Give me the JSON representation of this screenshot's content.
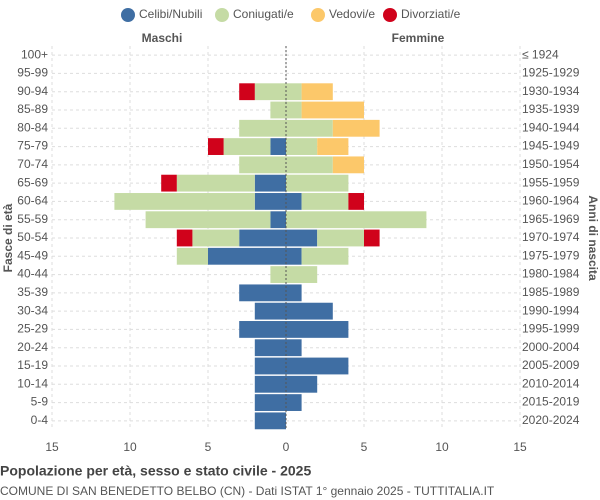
{
  "chart_data": {
    "type": "pyramid",
    "title": "Popolazione per età, sesso e stato civile - 2025",
    "subtitle": "COMUNE DI SAN BENEDETTO BELBO (CN) - Dati ISTAT 1° gennaio 2025 - TUTTITALIA.IT",
    "left_label": "Maschi",
    "right_label": "Femmine",
    "ylabel": "Fasce di età",
    "y2label": "Anni di nascita",
    "categories": [
      "100+",
      "95-99",
      "90-94",
      "85-89",
      "80-84",
      "75-79",
      "70-74",
      "65-69",
      "60-64",
      "55-59",
      "50-54",
      "45-49",
      "40-44",
      "35-39",
      "30-34",
      "25-29",
      "20-24",
      "15-19",
      "10-14",
      "5-9",
      "0-4"
    ],
    "birth_years": [
      "≤ 1924",
      "1925-1929",
      "1930-1934",
      "1935-1939",
      "1940-1944",
      "1945-1949",
      "1950-1954",
      "1955-1959",
      "1960-1964",
      "1965-1969",
      "1970-1974",
      "1975-1979",
      "1980-1984",
      "1985-1989",
      "1990-1994",
      "1995-1999",
      "2000-2004",
      "2005-2009",
      "2010-2014",
      "2015-2019",
      "2020-2024"
    ],
    "xlim": [
      -15,
      15
    ],
    "xticks": [
      {
        "value": -15,
        "label": "15"
      },
      {
        "value": -10,
        "label": "10"
      },
      {
        "value": -5,
        "label": "5"
      },
      0,
      5,
      10,
      15
    ],
    "grid": true,
    "series": [
      {
        "name": "Celibi/Nubili",
        "color": "#3f6ea3",
        "male_values": [
          0,
          0,
          0,
          0,
          0,
          1,
          0,
          2,
          2,
          1,
          3,
          5,
          0,
          3,
          2,
          3,
          2,
          2,
          2,
          2,
          2
        ],
        "female_values": [
          0,
          0,
          0,
          0,
          0,
          0,
          0,
          0,
          1,
          0,
          2,
          1,
          0,
          1,
          3,
          4,
          1,
          4,
          2,
          1,
          0
        ]
      },
      {
        "name": "Coniugati/e",
        "color": "#c5dba5",
        "male_values": [
          0,
          0,
          2,
          1,
          3,
          3,
          3,
          5,
          9,
          8,
          3,
          2,
          1,
          0,
          0,
          0,
          0,
          0,
          0,
          0,
          0
        ],
        "female_values": [
          0,
          0,
          1,
          1,
          3,
          2,
          3,
          4,
          3,
          9,
          3,
          3,
          2,
          0,
          0,
          0,
          0,
          0,
          0,
          0,
          0
        ]
      },
      {
        "name": "Vedovi/e",
        "color": "#fcc86a",
        "male_values": [
          0,
          0,
          0,
          0,
          0,
          0,
          0,
          0,
          0,
          0,
          0,
          0,
          0,
          0,
          0,
          0,
          0,
          0,
          0,
          0,
          0
        ],
        "female_values": [
          0,
          0,
          2,
          4,
          3,
          2,
          2,
          0,
          0,
          0,
          0,
          0,
          0,
          0,
          0,
          0,
          0,
          0,
          0,
          0,
          0
        ]
      },
      {
        "name": "Divorziati/e",
        "color": "#d0021b",
        "male_values": [
          0,
          0,
          1,
          0,
          0,
          1,
          0,
          1,
          0,
          0,
          1,
          0,
          0,
          0,
          0,
          0,
          0,
          0,
          0,
          0,
          0
        ],
        "female_values": [
          0,
          0,
          0,
          0,
          0,
          0,
          0,
          0,
          1,
          0,
          1,
          0,
          0,
          0,
          0,
          0,
          0,
          0,
          0,
          0,
          0
        ]
      }
    ]
  }
}
